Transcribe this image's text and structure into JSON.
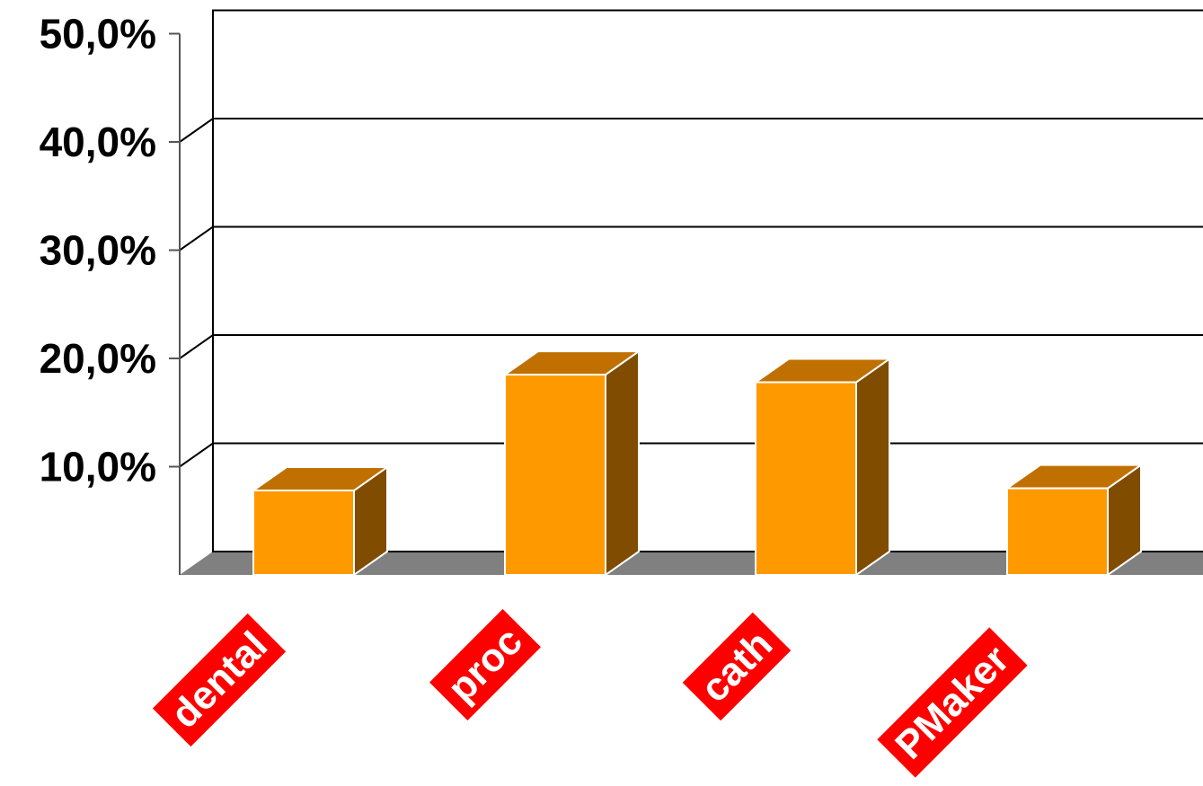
{
  "chart_data": {
    "type": "bar",
    "style": "3d",
    "categories": [
      "dental",
      "proc",
      "cath",
      "PMaker"
    ],
    "values": [
      7.8,
      18.5,
      17.8,
      8.0
    ],
    "y_ticks": [
      {
        "value": 10,
        "label": "10,0%"
      },
      {
        "value": 20,
        "label": "20,0%"
      },
      {
        "value": 30,
        "label": "30,0%"
      },
      {
        "value": 40,
        "label": "40,0%"
      },
      {
        "value": 50,
        "label": "50,0%"
      }
    ],
    "ylim": [
      0,
      50
    ],
    "grid": true,
    "legend": "none",
    "title": "",
    "xlabel": "",
    "ylabel": "",
    "colors": {
      "bar_front": "#FF9900",
      "bar_top": "#C07000",
      "bar_side": "#7F4C00",
      "floor": "#808080",
      "label_background": "#FF0000",
      "label_text": "#FFFFFF",
      "grid": "#000000"
    }
  }
}
